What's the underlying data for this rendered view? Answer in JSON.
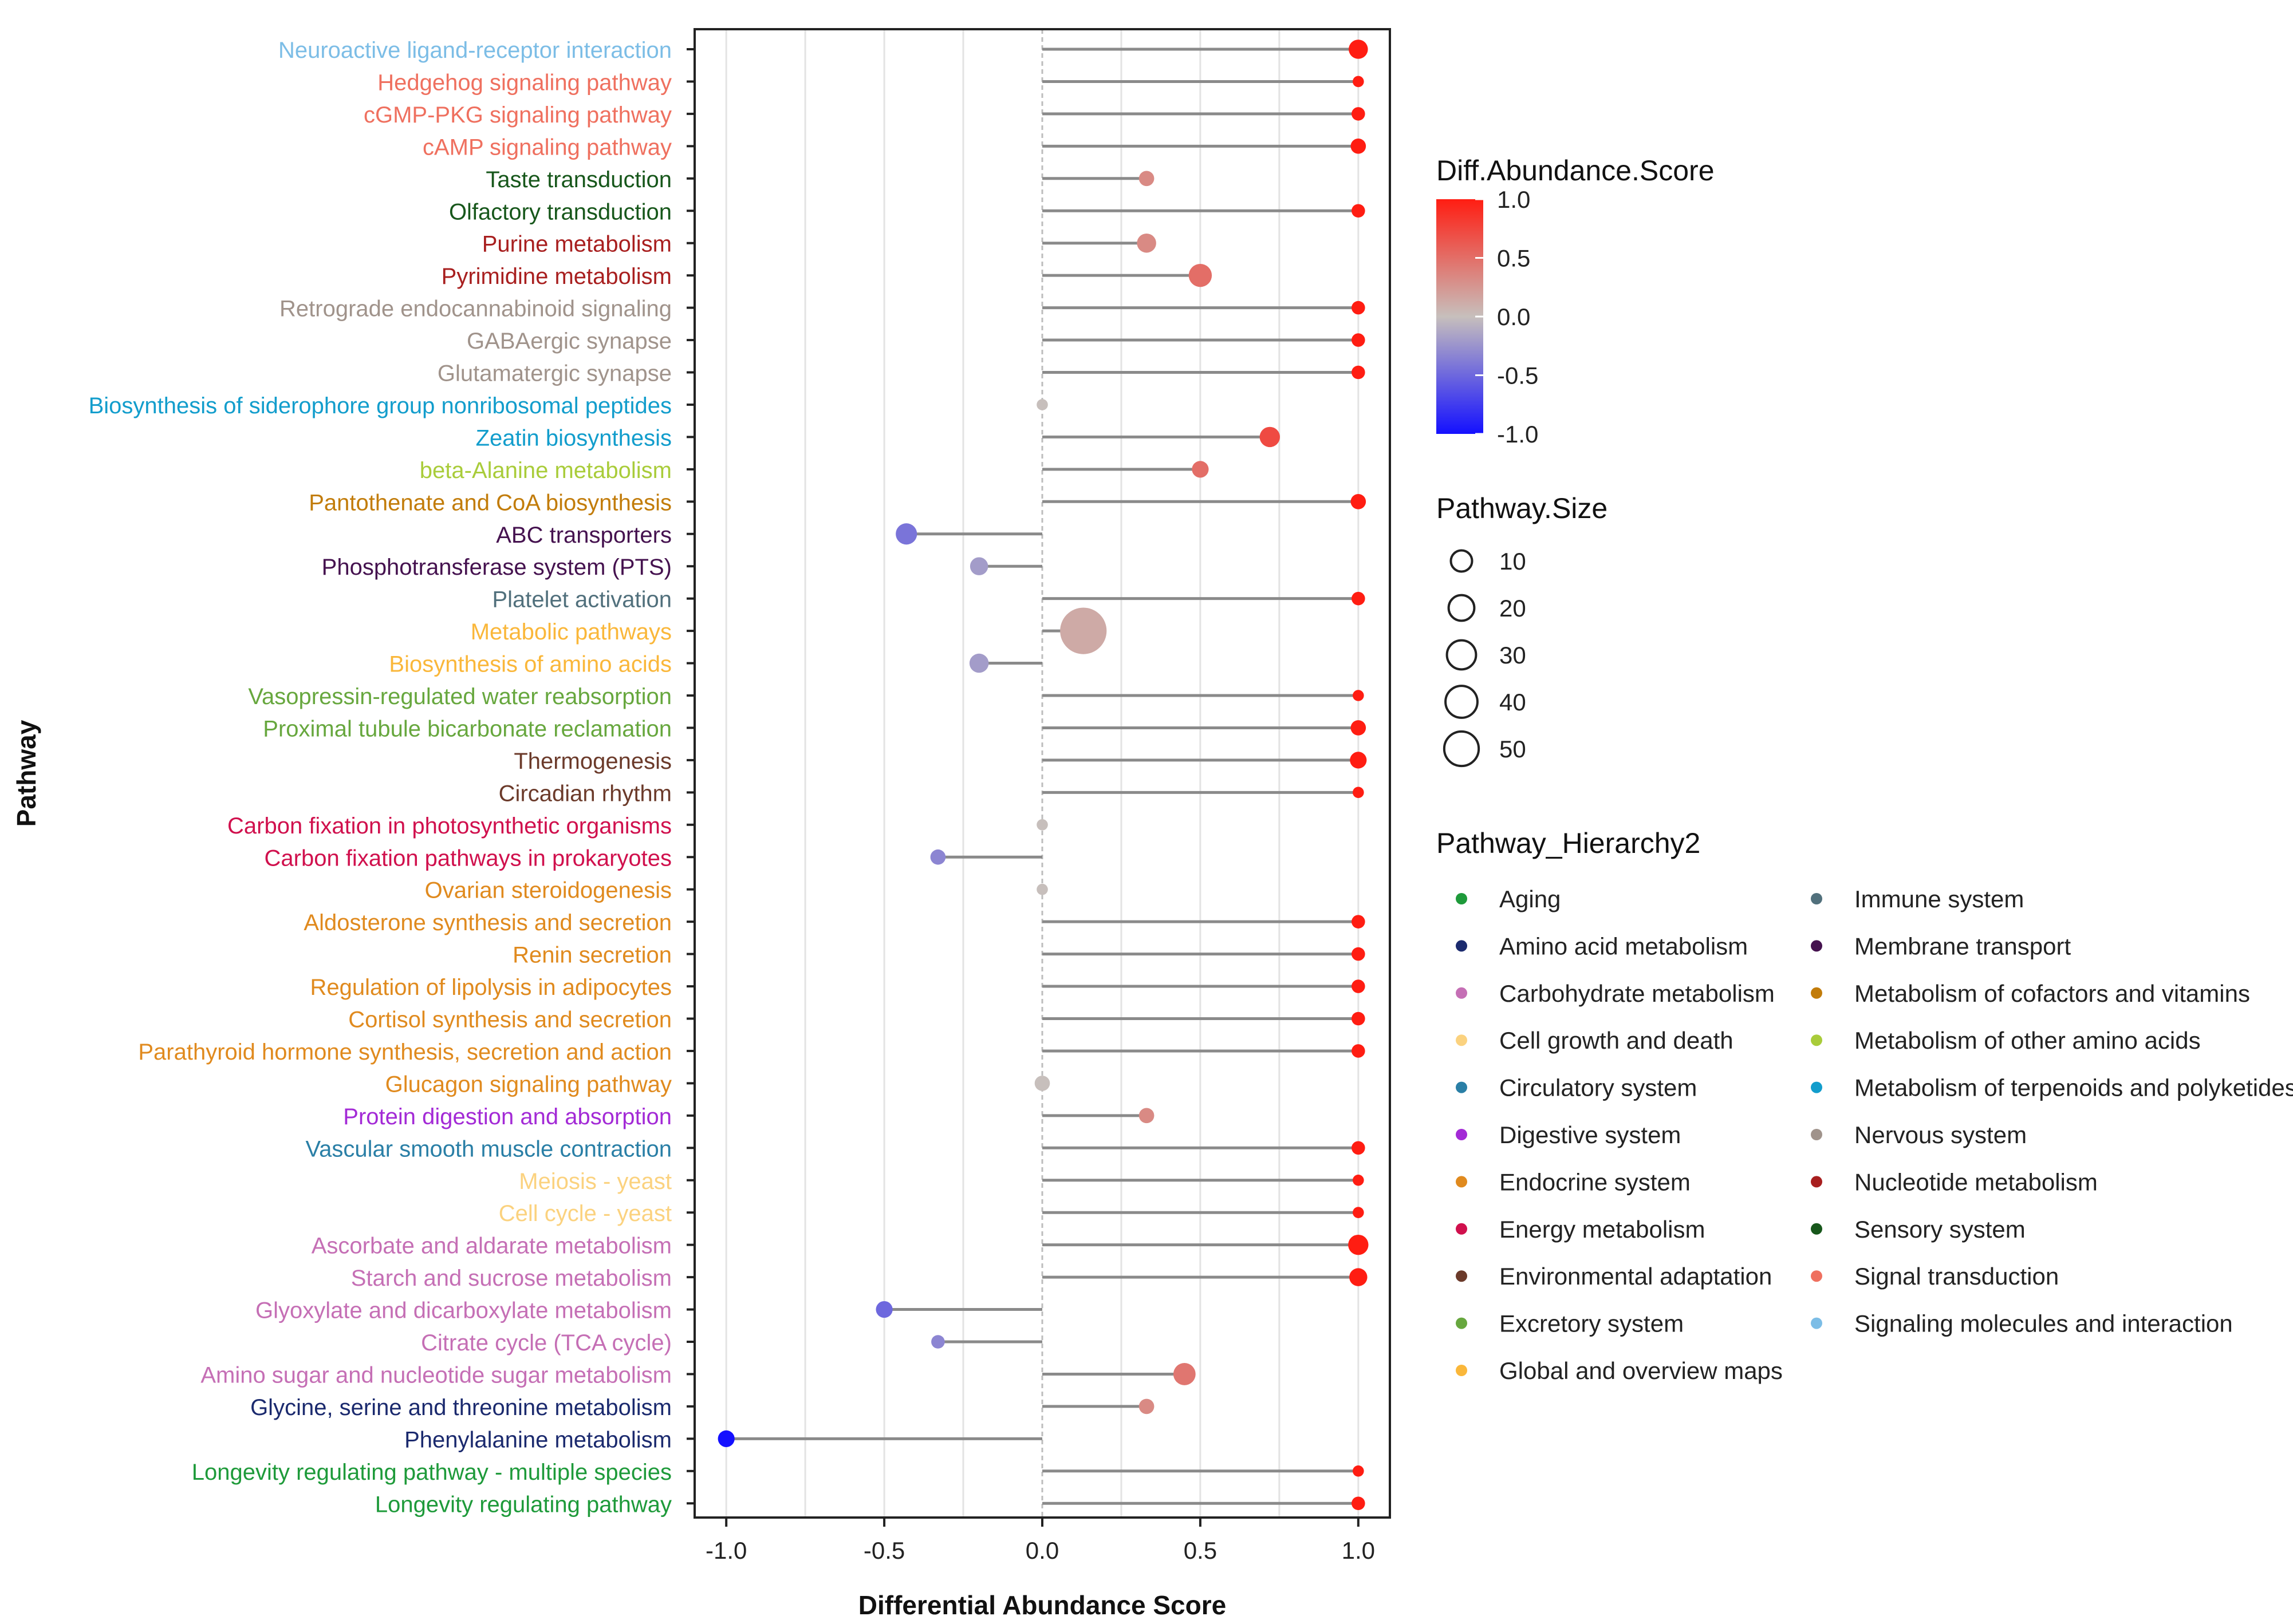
{
  "chart_data": {
    "type": "lollipop",
    "xlabel": "Differential Abundance Score",
    "ylabel": "Pathway",
    "xlim": [
      -1.1,
      1.1
    ],
    "x_ticks": [
      -1.0,
      -0.5,
      0.0,
      0.5,
      1.0
    ],
    "x_tick_labels": [
      "-1.0",
      "-0.5",
      "0.0",
      "0.5",
      "1.0"
    ],
    "grid": true,
    "pathways": [
      {
        "name": "Neuroactive ligand-receptor interaction",
        "score": 1.0,
        "size": 6,
        "category": "Signaling molecules and interaction"
      },
      {
        "name": "Hedgehog signaling pathway",
        "score": 1.0,
        "size": 1,
        "category": "Signal transduction"
      },
      {
        "name": "cGMP-PKG signaling pathway",
        "score": 1.0,
        "size": 2,
        "category": "Signal transduction"
      },
      {
        "name": "cAMP signaling pathway",
        "score": 1.0,
        "size": 3,
        "category": "Signal transduction"
      },
      {
        "name": "Taste transduction",
        "score": 0.33,
        "size": 3,
        "category": "Sensory system"
      },
      {
        "name": "Olfactory transduction",
        "score": 1.0,
        "size": 2,
        "category": "Sensory system"
      },
      {
        "name": "Purine metabolism",
        "score": 0.33,
        "size": 6,
        "category": "Nucleotide metabolism"
      },
      {
        "name": "Pyrimidine metabolism",
        "score": 0.5,
        "size": 10,
        "category": "Nucleotide metabolism"
      },
      {
        "name": "Retrograde endocannabinoid signaling",
        "score": 1.0,
        "size": 2,
        "category": "Nervous system"
      },
      {
        "name": "GABAergic synapse",
        "score": 1.0,
        "size": 2,
        "category": "Nervous system"
      },
      {
        "name": "Glutamatergic synapse",
        "score": 1.0,
        "size": 2,
        "category": "Nervous system"
      },
      {
        "name": "Biosynthesis of siderophore group nonribosomal peptides",
        "score": 0.0,
        "size": 1,
        "category": "Metabolism of terpenoids and polyketides"
      },
      {
        "name": "Zeatin biosynthesis",
        "score": 0.72,
        "size": 7,
        "category": "Metabolism of terpenoids and polyketides"
      },
      {
        "name": "beta-Alanine metabolism",
        "score": 0.5,
        "size": 4,
        "category": "Metabolism of other amino acids"
      },
      {
        "name": "Pantothenate and CoA biosynthesis",
        "score": 1.0,
        "size": 3,
        "category": "Metabolism of cofactors and vitamins"
      },
      {
        "name": "ABC transporters",
        "score": -0.43,
        "size": 8,
        "category": "Membrane transport"
      },
      {
        "name": "Phosphotransferase system (PTS)",
        "score": -0.2,
        "size": 5,
        "category": "Membrane transport"
      },
      {
        "name": "Platelet activation",
        "score": 1.0,
        "size": 2,
        "category": "Immune system"
      },
      {
        "name": "Metabolic pathways",
        "score": 0.13,
        "size": 55,
        "category": "Global and overview maps"
      },
      {
        "name": "Biosynthesis of amino acids",
        "score": -0.2,
        "size": 6,
        "category": "Global and overview maps"
      },
      {
        "name": "Vasopressin-regulated water reabsorption",
        "score": 1.0,
        "size": 1,
        "category": "Excretory system"
      },
      {
        "name": "Proximal tubule bicarbonate reclamation",
        "score": 1.0,
        "size": 3,
        "category": "Excretory system"
      },
      {
        "name": "Thermogenesis",
        "score": 1.0,
        "size": 4,
        "category": "Environmental adaptation"
      },
      {
        "name": "Circadian rhythm",
        "score": 1.0,
        "size": 1,
        "category": "Environmental adaptation"
      },
      {
        "name": "Carbon fixation in photosynthetic organisms",
        "score": 0.0,
        "size": 1,
        "category": "Energy metabolism"
      },
      {
        "name": "Carbon fixation pathways in prokaryotes",
        "score": -0.33,
        "size": 3,
        "category": "Energy metabolism"
      },
      {
        "name": "Ovarian steroidogenesis",
        "score": 0.0,
        "size": 1,
        "category": "Endocrine system"
      },
      {
        "name": "Aldosterone synthesis and secretion",
        "score": 1.0,
        "size": 2,
        "category": "Endocrine system"
      },
      {
        "name": "Renin secretion",
        "score": 1.0,
        "size": 2,
        "category": "Endocrine system"
      },
      {
        "name": "Regulation of lipolysis in adipocytes",
        "score": 1.0,
        "size": 2,
        "category": "Endocrine system"
      },
      {
        "name": "Cortisol synthesis and secretion",
        "score": 1.0,
        "size": 2,
        "category": "Endocrine system"
      },
      {
        "name": "Parathyroid hormone synthesis, secretion and action",
        "score": 1.0,
        "size": 2,
        "category": "Endocrine system"
      },
      {
        "name": "Glucagon signaling pathway",
        "score": 0.0,
        "size": 3,
        "category": "Endocrine system"
      },
      {
        "name": "Protein digestion and absorption",
        "score": 0.33,
        "size": 3,
        "category": "Digestive system"
      },
      {
        "name": "Vascular smooth muscle contraction",
        "score": 1.0,
        "size": 2,
        "category": "Circulatory system"
      },
      {
        "name": "Meiosis - yeast",
        "score": 1.0,
        "size": 1,
        "category": "Cell growth and death"
      },
      {
        "name": "Cell cycle - yeast",
        "score": 1.0,
        "size": 1,
        "category": "Cell growth and death"
      },
      {
        "name": "Ascorbate and aldarate metabolism",
        "score": 1.0,
        "size": 7,
        "category": "Carbohydrate metabolism"
      },
      {
        "name": "Starch and sucrose metabolism",
        "score": 1.0,
        "size": 5,
        "category": "Carbohydrate metabolism"
      },
      {
        "name": "Glyoxylate and dicarboxylate metabolism",
        "score": -0.5,
        "size": 4,
        "category": "Carbohydrate metabolism"
      },
      {
        "name": "Citrate cycle (TCA cycle)",
        "score": -0.33,
        "size": 2,
        "category": "Carbohydrate metabolism"
      },
      {
        "name": "Amino sugar and nucleotide sugar metabolism",
        "score": 0.45,
        "size": 9,
        "category": "Carbohydrate metabolism"
      },
      {
        "name": "Glycine, serine and threonine metabolism",
        "score": 0.33,
        "size": 3,
        "category": "Amino acid metabolism"
      },
      {
        "name": "Phenylalanine metabolism",
        "score": -1.0,
        "size": 4,
        "category": "Amino acid metabolism"
      },
      {
        "name": "Longevity regulating pathway - multiple species",
        "score": 1.0,
        "size": 1,
        "category": "Aging"
      },
      {
        "name": "Longevity regulating pathway",
        "score": 1.0,
        "size": 2,
        "category": "Aging"
      }
    ]
  },
  "category_colors": {
    "Aging": "#1e9a3a",
    "Amino acid metabolism": "#1b2a6e",
    "Carbohydrate metabolism": "#c56fb5",
    "Cell growth and death": "#fbd27f",
    "Circulatory system": "#2a7fa6",
    "Digestive system": "#a32ad6",
    "Endocrine system": "#e08a1e",
    "Energy metabolism": "#d0104d",
    "Environmental adaptation": "#6b3a2a",
    "Excretory system": "#67a73e",
    "Global and overview maps": "#fab73a",
    "Immune system": "#51707c",
    "Membrane transport": "#45124f",
    "Metabolism of cofactors and vitamins": "#c27c0a",
    "Metabolism of other amino acids": "#a9cc3a",
    "Metabolism of terpenoids and polyketides": "#129dcc",
    "Nervous system": "#a0938b",
    "Nucleotide metabolism": "#a81f1f",
    "Sensory system": "#17571b",
    "Signal transduction": "#ef705f",
    "Signaling molecules and interaction": "#7cbde6"
  },
  "legend_color": {
    "title": "Diff.Abundance.Score",
    "ticks": [
      "1.0",
      "0.5",
      "0.0",
      "-0.5",
      "-1.0"
    ],
    "tick_values": [
      1.0,
      0.5,
      0.0,
      -0.5,
      -1.0
    ],
    "high_color": "#ff1d12",
    "mid_color": "#c7bfbc",
    "low_color": "#1410ff"
  },
  "legend_size": {
    "title": "Pathway.Size",
    "values": [
      10,
      20,
      30,
      40,
      50
    ],
    "labels": [
      "10",
      "20",
      "30",
      "40",
      "50"
    ]
  },
  "legend_hierarchy": {
    "title": "Pathway_Hierarchy2",
    "col1": [
      "Aging",
      "Amino acid metabolism",
      "Carbohydrate metabolism",
      "Cell growth and death",
      "Circulatory system",
      "Digestive system",
      "Endocrine system",
      "Energy metabolism",
      "Environmental adaptation",
      "Excretory system",
      "Global and overview maps"
    ],
    "col2": [
      "Immune system",
      "Membrane transport",
      "Metabolism of cofactors and vitamins",
      "Metabolism of other amino acids",
      "Metabolism of terpenoids and polyketides",
      "Nervous system",
      "Nucleotide metabolism",
      "Sensory system",
      "Signal transduction",
      "Signaling molecules and interaction"
    ]
  }
}
